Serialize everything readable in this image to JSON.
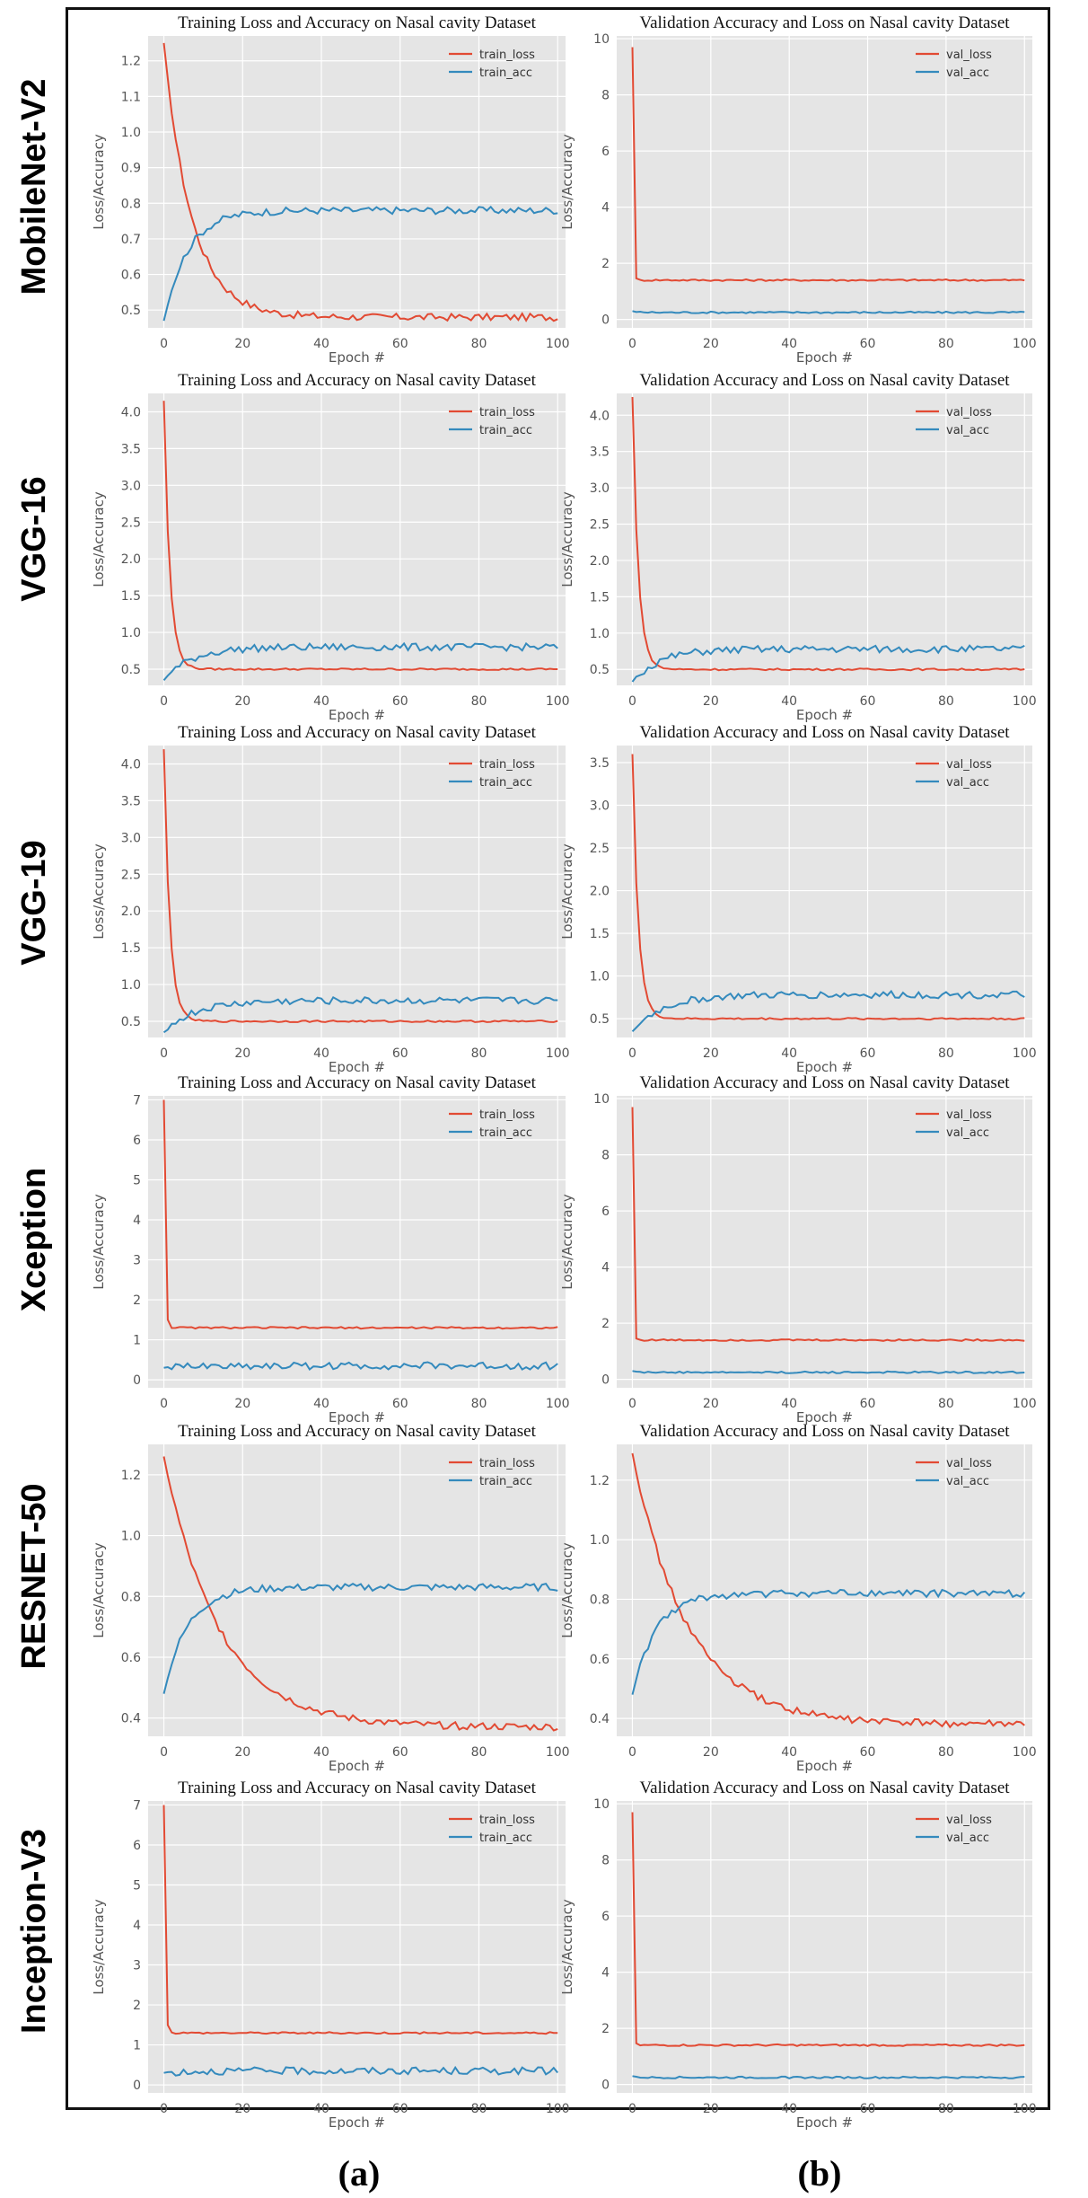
{
  "row_labels": [
    "MobileNet-V2",
    "VGG-16",
    "VGG-19",
    "Xception",
    "RESNET-50",
    "Inception-V3"
  ],
  "column_labels": [
    "(a)",
    "(b)"
  ],
  "colors": {
    "loss": "#e24a33",
    "acc": "#348abd",
    "plot_bg": "#e5e5e5",
    "grid": "#ffffff",
    "axis_text": "#555555"
  },
  "chart_data": [
    {
      "type": "line",
      "model": "MobileNet-V2",
      "title": "Training  Loss and Accuracy  on Nasal cavity  Dataset",
      "xlabel": "Epoch #",
      "ylabel": "Loss/Accuracy",
      "xlim": [
        -4,
        102
      ],
      "ylim": [
        0.45,
        1.27
      ],
      "xticks": [
        0,
        20,
        40,
        60,
        80,
        100
      ],
      "yticks": [
        0.5,
        0.6,
        0.7,
        0.8,
        0.9,
        1.0,
        1.1,
        1.2
      ],
      "ytick_labels": [
        "0.5",
        "0.6",
        "0.7",
        "0.8",
        "0.9",
        "1.0",
        "1.1",
        "1.2"
      ],
      "legend": "top-right",
      "series": [
        {
          "name": "train_loss",
          "kind": "loss",
          "start": 1.25,
          "end": 0.48,
          "tau": 7
        },
        {
          "name": "train_acc",
          "kind": "acc",
          "start": 0.47,
          "end": 0.78,
          "tau": 6
        }
      ]
    },
    {
      "type": "line",
      "model": "MobileNet-V2",
      "title": "Validation Accuracy and Loss on Nasal cavity Dataset",
      "xlabel": "Epoch #",
      "ylabel": "Loss/Accuracy",
      "xlim": [
        -4,
        102
      ],
      "ylim": [
        -0.3,
        10.1
      ],
      "xticks": [
        0,
        20,
        40,
        60,
        80,
        100
      ],
      "yticks": [
        0,
        2,
        4,
        6,
        8,
        10
      ],
      "ytick_labels": [
        "0",
        "2",
        "4",
        "6",
        "8",
        "10"
      ],
      "legend": "top-right",
      "series": [
        {
          "name": "val_loss",
          "kind": "loss",
          "start": 9.7,
          "end": 1.4,
          "tau": 0.2
        },
        {
          "name": "val_acc",
          "kind": "acc",
          "start": 0.3,
          "end": 0.25,
          "tau": 1
        }
      ]
    },
    {
      "type": "line",
      "model": "VGG-16",
      "title": "Training  Loss and Accuracy  on Nasal cavity  Dataset",
      "xlabel": "Epoch #",
      "ylabel": "Loss/Accuracy",
      "xlim": [
        -4,
        102
      ],
      "ylim": [
        0.28,
        4.25
      ],
      "xticks": [
        0,
        20,
        40,
        60,
        80,
        100
      ],
      "yticks": [
        0.5,
        1.0,
        1.5,
        2.0,
        2.5,
        3.0,
        3.5,
        4.0
      ],
      "ytick_labels": [
        "0.5",
        "1.0",
        "1.5",
        "2.0",
        "2.5",
        "3.0",
        "3.5",
        "4.0"
      ],
      "legend": "top-right",
      "series": [
        {
          "name": "train_loss",
          "kind": "loss",
          "start": 4.15,
          "end": 0.5,
          "tau": 1.5
        },
        {
          "name": "train_acc",
          "kind": "acc",
          "start": 0.35,
          "end": 0.8,
          "tau": 7
        }
      ]
    },
    {
      "type": "line",
      "model": "VGG-16",
      "title": "Validation Accuracy and Loss on Nasal cavity Dataset",
      "xlabel": "Epoch #",
      "ylabel": "Loss/Accuracy",
      "xlim": [
        -4,
        102
      ],
      "ylim": [
        0.28,
        4.3
      ],
      "xticks": [
        0,
        20,
        40,
        60,
        80,
        100
      ],
      "yticks": [
        0.5,
        1.0,
        1.5,
        2.0,
        2.5,
        3.0,
        3.5,
        4.0
      ],
      "ytick_labels": [
        "0.5",
        "1.0",
        "1.5",
        "2.0",
        "2.5",
        "3.0",
        "3.5",
        "4.0"
      ],
      "legend": "top-right",
      "series": [
        {
          "name": "val_loss",
          "kind": "loss",
          "start": 4.25,
          "end": 0.5,
          "tau": 1.5
        },
        {
          "name": "val_acc",
          "kind": "acc",
          "start": 0.33,
          "end": 0.78,
          "tau": 7
        }
      ]
    },
    {
      "type": "line",
      "model": "VGG-19",
      "title": "Training  Loss and Accuracy  on Nasal cavity  Dataset",
      "xlabel": "Epoch #",
      "ylabel": "Loss/Accuracy",
      "xlim": [
        -4,
        102
      ],
      "ylim": [
        0.28,
        4.25
      ],
      "xticks": [
        0,
        20,
        40,
        60,
        80,
        100
      ],
      "yticks": [
        0.5,
        1.0,
        1.5,
        2.0,
        2.5,
        3.0,
        3.5,
        4.0
      ],
      "ytick_labels": [
        "0.5",
        "1.0",
        "1.5",
        "2.0",
        "2.5",
        "3.0",
        "3.5",
        "4.0"
      ],
      "legend": "top-right",
      "series": [
        {
          "name": "train_loss",
          "kind": "loss",
          "start": 4.2,
          "end": 0.5,
          "tau": 1.5
        },
        {
          "name": "train_acc",
          "kind": "acc",
          "start": 0.35,
          "end": 0.78,
          "tau": 8
        }
      ]
    },
    {
      "type": "line",
      "model": "VGG-19",
      "title": "Validation Accuracy and Loss on Nasal cavity Dataset",
      "xlabel": "Epoch #",
      "ylabel": "Loss/Accuracy",
      "xlim": [
        -4,
        102
      ],
      "ylim": [
        0.28,
        3.7
      ],
      "xticks": [
        0,
        20,
        40,
        60,
        80,
        100
      ],
      "yticks": [
        0.5,
        1.0,
        1.5,
        2.0,
        2.5,
        3.0,
        3.5
      ],
      "ytick_labels": [
        "0.5",
        "1.0",
        "1.5",
        "2.0",
        "2.5",
        "3.0",
        "3.5"
      ],
      "legend": "top-right",
      "series": [
        {
          "name": "val_loss",
          "kind": "loss",
          "start": 3.6,
          "end": 0.5,
          "tau": 1.5
        },
        {
          "name": "val_acc",
          "kind": "acc",
          "start": 0.35,
          "end": 0.78,
          "tau": 8
        }
      ]
    },
    {
      "type": "line",
      "model": "Xception",
      "title": "Training  Loss and Accuracy  on Nasal cavity  Dataset",
      "xlabel": "Epoch #",
      "ylabel": "Loss/Accuracy",
      "xlim": [
        -4,
        102
      ],
      "ylim": [
        -0.2,
        7.1
      ],
      "xticks": [
        0,
        20,
        40,
        60,
        80,
        100
      ],
      "yticks": [
        0,
        1,
        2,
        3,
        4,
        5,
        6,
        7
      ],
      "ytick_labels": [
        "0",
        "1",
        "2",
        "3",
        "4",
        "5",
        "6",
        "7"
      ],
      "legend": "top-right",
      "series": [
        {
          "name": "train_loss",
          "kind": "loss",
          "start": 7.0,
          "end": 1.3,
          "tau": 0.3
        },
        {
          "name": "train_acc",
          "kind": "acc",
          "start": 0.3,
          "end": 0.35,
          "tau": 5
        }
      ]
    },
    {
      "type": "line",
      "model": "Xception",
      "title": "Validation Accuracy and Loss on Nasal cavity Dataset",
      "xlabel": "Epoch #",
      "ylabel": "Loss/Accuracy",
      "xlim": [
        -4,
        102
      ],
      "ylim": [
        -0.3,
        10.1
      ],
      "xticks": [
        0,
        20,
        40,
        60,
        80,
        100
      ],
      "yticks": [
        0,
        2,
        4,
        6,
        8,
        10
      ],
      "ytick_labels": [
        "0",
        "2",
        "4",
        "6",
        "8",
        "10"
      ],
      "legend": "top-right",
      "series": [
        {
          "name": "val_loss",
          "kind": "loss",
          "start": 9.7,
          "end": 1.4,
          "tau": 0.2
        },
        {
          "name": "val_acc",
          "kind": "acc",
          "start": 0.3,
          "end": 0.25,
          "tau": 1
        }
      ]
    },
    {
      "type": "line",
      "model": "RESNET-50",
      "title": "Training  Loss and Accuracy  on Nasal cavity  Dataset",
      "xlabel": "Epoch #",
      "ylabel": "Loss/Accuracy",
      "xlim": [
        -4,
        102
      ],
      "ylim": [
        0.34,
        1.3
      ],
      "xticks": [
        0,
        20,
        40,
        60,
        80,
        100
      ],
      "yticks": [
        0.4,
        0.6,
        0.8,
        1.0,
        1.2
      ],
      "ytick_labels": [
        "0.4",
        "0.6",
        "0.8",
        "1.0",
        "1.2"
      ],
      "legend": "top-right",
      "series": [
        {
          "name": "train_loss",
          "kind": "loss",
          "start": 1.26,
          "end": 0.37,
          "tau": 14
        },
        {
          "name": "train_acc",
          "kind": "acc",
          "start": 0.48,
          "end": 0.83,
          "tau": 6
        }
      ]
    },
    {
      "type": "line",
      "model": "RESNET-50",
      "title": "Validation Accuracy and Loss on Nasal cavity Dataset",
      "xlabel": "Epoch #",
      "ylabel": "Loss/Accuracy",
      "xlim": [
        -4,
        102
      ],
      "ylim": [
        0.34,
        1.32
      ],
      "xticks": [
        0,
        20,
        40,
        60,
        80,
        100
      ],
      "yticks": [
        0.4,
        0.6,
        0.8,
        1.0,
        1.2
      ],
      "ytick_labels": [
        "0.4",
        "0.6",
        "0.8",
        "1.0",
        "1.2"
      ],
      "legend": "top-right",
      "series": [
        {
          "name": "val_loss",
          "kind": "loss",
          "start": 1.29,
          "end": 0.38,
          "tau": 14
        },
        {
          "name": "val_acc",
          "kind": "acc",
          "start": 0.48,
          "end": 0.82,
          "tau": 6
        }
      ]
    },
    {
      "type": "line",
      "model": "Inception-V3",
      "title": "Training  Loss and Accuracy  on Nasal cavity  Dataset",
      "xlabel": "Epoch #",
      "ylabel": "Loss/Accuracy",
      "xlim": [
        -4,
        102
      ],
      "ylim": [
        -0.2,
        7.1
      ],
      "xticks": [
        0,
        20,
        40,
        60,
        80,
        100
      ],
      "yticks": [
        0,
        1,
        2,
        3,
        4,
        5,
        6,
        7
      ],
      "ytick_labels": [
        "0",
        "1",
        "2",
        "3",
        "4",
        "5",
        "6",
        "7"
      ],
      "legend": "top-right",
      "series": [
        {
          "name": "train_loss",
          "kind": "loss",
          "start": 7.0,
          "end": 1.3,
          "tau": 0.3
        },
        {
          "name": "train_acc",
          "kind": "acc",
          "start": 0.3,
          "end": 0.35,
          "tau": 5
        }
      ]
    },
    {
      "type": "line",
      "model": "Inception-V3",
      "title": "Validation Accuracy and Loss on Nasal cavity Dataset",
      "xlabel": "Epoch #",
      "ylabel": "Loss/Accuracy",
      "xlim": [
        -4,
        102
      ],
      "ylim": [
        -0.3,
        10.1
      ],
      "xticks": [
        0,
        20,
        40,
        60,
        80,
        100
      ],
      "yticks": [
        0,
        2,
        4,
        6,
        8,
        10
      ],
      "ytick_labels": [
        "0",
        "2",
        "4",
        "6",
        "8",
        "10"
      ],
      "legend": "top-right",
      "series": [
        {
          "name": "val_loss",
          "kind": "loss",
          "start": 9.7,
          "end": 1.4,
          "tau": 0.2
        },
        {
          "name": "val_acc",
          "kind": "acc",
          "start": 0.3,
          "end": 0.25,
          "tau": 1
        }
      ]
    }
  ]
}
